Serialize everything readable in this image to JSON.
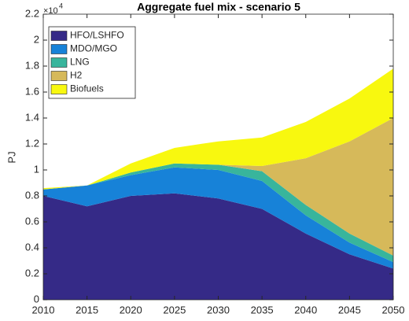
{
  "chart_data": {
    "type": "stacked-area",
    "title": "Aggregate fuel mix - scenario 5",
    "y_label": "PJ",
    "y_multiplier": "×10",
    "y_multiplier_exponent": "4",
    "x": [
      2010,
      2015,
      2020,
      2025,
      2030,
      2035,
      2040,
      2045,
      2050
    ],
    "xlim": [
      2010,
      2050
    ],
    "xticks": [
      2010,
      2015,
      2020,
      2025,
      2030,
      2035,
      2040,
      2045,
      2050
    ],
    "ylim": [
      0,
      2.2
    ],
    "yticks": [
      0,
      0.2,
      0.4,
      0.6,
      0.8,
      1,
      1.2,
      1.4,
      1.6,
      1.8,
      2,
      2.2
    ],
    "legend": "upper-left",
    "series": [
      {
        "name": "HFO/LSHFO",
        "color": "#352a87",
        "values": [
          0.8,
          0.72,
          0.8,
          0.82,
          0.78,
          0.7,
          0.51,
          0.35,
          0.24
        ]
      },
      {
        "name": "MDO/MGO",
        "color": "#1782d8",
        "values": [
          0.05,
          0.16,
          0.16,
          0.2,
          0.22,
          0.215,
          0.14,
          0.09,
          0.05
        ]
      },
      {
        "name": "LNG",
        "color": "#38b59c",
        "values": [
          0,
          0,
          0.02,
          0.03,
          0.04,
          0.075,
          0.08,
          0.07,
          0.05
        ]
      },
      {
        "name": "H2",
        "color": "#d6b95a",
        "values": [
          0,
          0,
          0,
          0,
          0,
          0.04,
          0.36,
          0.71,
          1.06
        ]
      },
      {
        "name": "Biofuels",
        "color": "#f8f80f",
        "values": [
          0.01,
          0,
          0.07,
          0.12,
          0.18,
          0.22,
          0.28,
          0.33,
          0.38
        ]
      }
    ]
  }
}
